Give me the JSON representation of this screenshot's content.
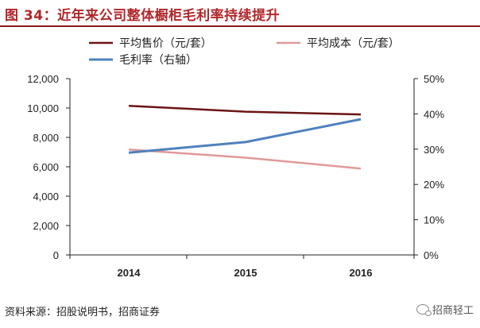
{
  "title": "图 34：近年来公司整体橱柜毛利率持续提升",
  "source": "资料来源：招股说明书，招商证券",
  "watermark": "招商轻工",
  "chart_data": {
    "type": "line",
    "categories": [
      "2014",
      "2015",
      "2016"
    ],
    "series": [
      {
        "name": "平均售价（元/套）",
        "axis": "left",
        "color": "#6b1414",
        "values": [
          10150,
          9750,
          9560
        ]
      },
      {
        "name": "平均成本（元/套）",
        "axis": "left",
        "color": "#e09999",
        "values": [
          7180,
          6620,
          5880
        ]
      },
      {
        "name": "毛利率（右轴）",
        "axis": "right",
        "color": "#4f81bd",
        "values": [
          0.29,
          0.32,
          0.385
        ]
      }
    ],
    "ylim_left": [
      0,
      12000
    ],
    "yticks_left": [
      "0",
      "2,000",
      "4,000",
      "6,000",
      "8,000",
      "10,000",
      "12,000"
    ],
    "ylim_right": [
      0,
      0.5
    ],
    "yticks_right": [
      "0%",
      "10%",
      "20%",
      "30%",
      "40%",
      "50%"
    ],
    "grid": false,
    "legend_position": "top"
  }
}
